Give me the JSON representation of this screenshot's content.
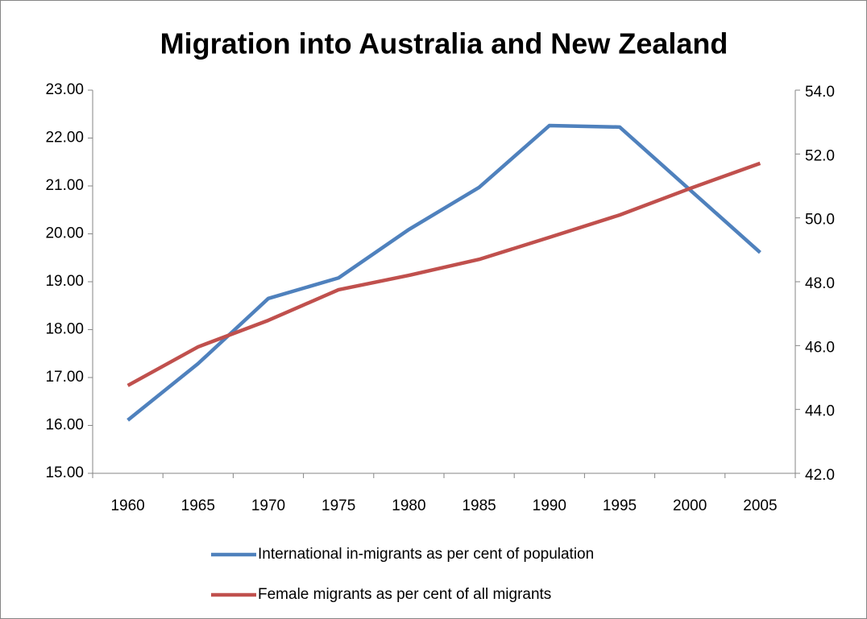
{
  "chart_data": {
    "type": "line",
    "title": "Migration into Australia and New Zealand",
    "categories": [
      "1960",
      "1965",
      "1970",
      "1975",
      "1980",
      "1985",
      "1990",
      "1995",
      "2000",
      "2005"
    ],
    "series": [
      {
        "name": "International in-migrants as per cent of population",
        "color": "#4f81bd",
        "values": [
          16.11,
          17.29,
          18.65,
          19.08,
          20.09,
          20.97,
          22.26,
          22.23,
          20.92,
          19.61
        ]
      },
      {
        "name": "Female migrants as per cent of all migrants",
        "color": "#c0504d",
        "axis": "y2",
        "values": [
          44.75,
          45.96,
          46.79,
          47.75,
          48.2,
          48.7,
          49.39,
          50.09,
          50.92,
          51.71
        ]
      }
    ],
    "ylim": [
      15,
      23
    ],
    "yticks": [
      {
        "value": 15,
        "label": "15.00"
      },
      {
        "value": 16,
        "label": "16.00"
      },
      {
        "value": 17,
        "label": "17.00"
      },
      {
        "value": 18,
        "label": "18.00"
      },
      {
        "value": 19,
        "label": "19.00"
      },
      {
        "value": 20,
        "label": "20.00"
      },
      {
        "value": 21,
        "label": "21.00"
      },
      {
        "value": 22,
        "label": "22.00"
      },
      {
        "value": 23,
        "label": "23.00"
      }
    ],
    "y2lim": [
      42,
      54
    ],
    "y2ticks": [
      {
        "value": 42,
        "label": "42.0"
      },
      {
        "value": 44,
        "label": "44.0"
      },
      {
        "value": 46,
        "label": "46.0"
      },
      {
        "value": 48,
        "label": "48.0"
      },
      {
        "value": 50,
        "label": "50.0"
      },
      {
        "value": 52,
        "label": "52.0"
      },
      {
        "value": 54,
        "label": "54.0"
      }
    ],
    "grid": false,
    "legend": "bottom"
  }
}
